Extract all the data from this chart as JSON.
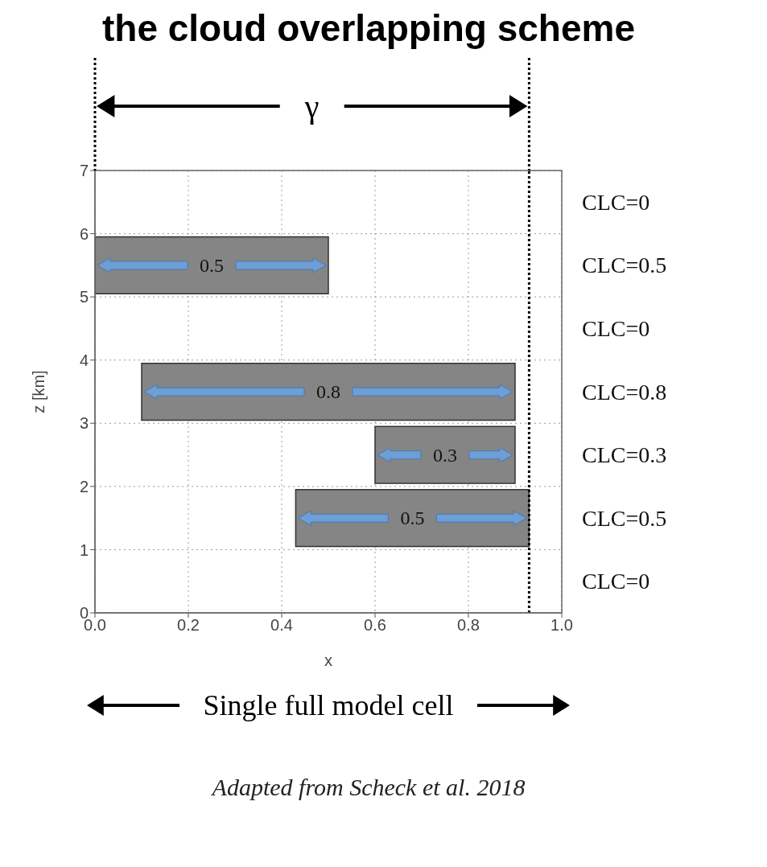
{
  "chart_data": {
    "type": "bar",
    "orientation": "horizontal",
    "title": "the cloud overlapping scheme",
    "xlabel": "x",
    "ylabel": "z [km]",
    "x": [
      5.5,
      3.5,
      2.5,
      1.5
    ],
    "values": [
      0.5,
      0.8,
      0.3,
      0.5
    ],
    "base": [
      0,
      0.1,
      0.6,
      0.43
    ],
    "color": "#858585",
    "data_labels": true,
    "xlim": [
      0,
      1
    ],
    "xticks": [
      {
        "value": 0,
        "label": "0.0"
      },
      {
        "value": 0.2,
        "label": "0.2"
      },
      {
        "value": 0.4,
        "label": "0.4"
      },
      {
        "value": 0.6,
        "label": "0.6"
      },
      {
        "value": 0.8,
        "label": "0.8"
      },
      {
        "value": 1,
        "label": "1.0"
      }
    ],
    "ylim": [
      0,
      7
    ],
    "yticks": [
      0,
      1,
      2,
      3,
      4,
      5,
      6,
      7
    ],
    "grid": true,
    "ref_lines": [
      {
        "axis": "x",
        "value": 0.93,
        "line_style": "dotted",
        "color": "#000000"
      }
    ],
    "annotations": [
      "γ",
      "CLC=0",
      "CLC=0.5",
      "CLC=0",
      "CLC=0.8",
      "CLC=0.3",
      "CLC=0.5",
      "CLC=0",
      "Single full model cell",
      "Adapted from Scheck et al. 2018"
    ]
  }
}
